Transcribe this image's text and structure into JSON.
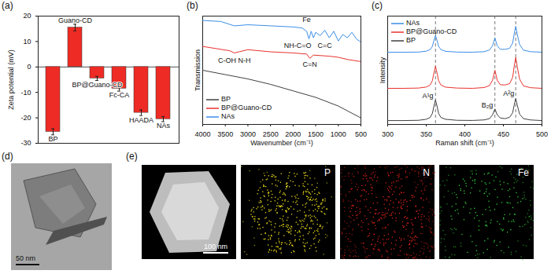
{
  "chart_data": [
    {
      "type": "bar",
      "title": "(a)",
      "categories": [
        "BP",
        "Guano-CD",
        "BP@Guano-CD",
        "Fc-CA",
        "HAADA",
        "NAs"
      ],
      "values": [
        -25.5,
        15.5,
        -4.5,
        -8.5,
        -18,
        -20.5
      ],
      "error": [
        1.2,
        1.3,
        0.8,
        1.0,
        1.1,
        1.0
      ],
      "color": "#ee2b24",
      "y_label": "Zeta potential (mV)",
      "ylim": [
        -30,
        20
      ],
      "yticks": [
        -30,
        -20,
        -10,
        0,
        10,
        20
      ],
      "tick_labels": "y"
    },
    {
      "type": "line",
      "title": "(b)",
      "x_label": "Wavenumber (cm⁻¹)",
      "y_label": "Transmission",
      "xlim": [
        4000,
        500
      ],
      "xticks": [
        4000,
        3500,
        3000,
        2500,
        2000,
        1500,
        1000,
        500
      ],
      "ylim": [
        0,
        10
      ],
      "tick_labels": "x",
      "legend": "bottom-left",
      "series": [
        {
          "name": "BP",
          "color": "#404040",
          "x": [
            4000,
            3500,
            3000,
            2500,
            2000,
            1500,
            1000,
            500
          ],
          "values": [
            5.0,
            4.6,
            4.2,
            3.7,
            3.1,
            2.5,
            1.7,
            0.6
          ]
        },
        {
          "name": "BP@Guano-CD",
          "color": "#e8332e",
          "x": [
            4000,
            3700,
            3400,
            3300,
            3200,
            3000,
            2500,
            2000,
            1700,
            1630,
            1550,
            1200,
            1000,
            800,
            500
          ],
          "values": [
            7.2,
            7.0,
            6.8,
            6.6,
            6.7,
            6.9,
            6.7,
            6.6,
            6.5,
            6.1,
            6.4,
            6.3,
            6.2,
            6.0,
            5.8
          ]
        },
        {
          "name": "NAs",
          "color": "#3c8ee8",
          "x": [
            4000,
            3600,
            3300,
            3000,
            2500,
            2000,
            1800,
            1700,
            1650,
            1600,
            1550,
            1500,
            1400,
            1300,
            1200,
            1100,
            1000,
            900,
            800,
            700,
            600,
            500
          ],
          "values": [
            9.6,
            9.5,
            9.1,
            9.2,
            9.1,
            9.0,
            8.9,
            8.6,
            7.9,
            8.6,
            8.0,
            8.5,
            8.2,
            8.7,
            8.0,
            8.6,
            7.7,
            8.3,
            8.0,
            8.5,
            7.9,
            7.6
          ]
        }
      ],
      "annotations": [
        {
          "text": "Fe",
          "x": 1700,
          "y": 9.7
        },
        {
          "text": "NH-C=O",
          "x": 1900,
          "y": 7.3
        },
        {
          "text": "C=C",
          "x": 1300,
          "y": 7.3
        },
        {
          "text": "C-OH N-H",
          "x": 3300,
          "y": 5.9
        },
        {
          "text": "C=N",
          "x": 1630,
          "y": 5.5
        }
      ]
    },
    {
      "type": "line",
      "title": "(c)",
      "x_label": "Raman shift (cm⁻¹)",
      "y_label": "Intensity",
      "xlim": [
        300,
        500
      ],
      "xticks": [
        300,
        350,
        400,
        450,
        500
      ],
      "ylim": [
        0,
        8.4
      ],
      "tick_labels": "x",
      "legend": "top-left",
      "x": [
        300,
        320,
        340,
        350,
        355,
        358,
        360,
        362,
        364,
        366,
        369,
        375,
        390,
        410,
        425,
        432,
        436,
        439,
        442,
        446,
        452,
        458,
        462,
        464,
        466,
        468,
        471,
        476,
        485,
        500
      ],
      "series": [
        {
          "name": "NAs",
          "color": "#3c8ee8",
          "values": [
            5.6,
            5.6,
            5.61,
            5.68,
            5.8,
            6.06,
            6.51,
            6.9,
            6.51,
            6.06,
            5.8,
            5.67,
            5.61,
            5.6,
            5.64,
            5.77,
            6.1,
            6.7,
            6.1,
            5.83,
            5.82,
            5.9,
            6.3,
            7.0,
            7.6,
            7.0,
            6.2,
            5.76,
            5.64,
            5.6
          ]
        },
        {
          "name": "BP@Guano-CD",
          "color": "#e8332e",
          "values": [
            2.8,
            2.8,
            2.82,
            2.9,
            3.06,
            3.4,
            3.99,
            4.5,
            3.99,
            3.4,
            3.06,
            2.89,
            2.82,
            2.8,
            2.86,
            3.01,
            3.43,
            4.2,
            3.43,
            3.08,
            3.06,
            3.16,
            3.64,
            4.48,
            5.2,
            4.48,
            3.52,
            2.99,
            2.85,
            2.8
          ]
        },
        {
          "name": "BP",
          "color": "#404040",
          "values": [
            0.3,
            0.3,
            0.32,
            0.4,
            0.54,
            0.86,
            1.42,
            1.9,
            1.42,
            0.86,
            0.54,
            0.4,
            0.32,
            0.31,
            0.35,
            0.45,
            0.75,
            1.2,
            0.75,
            0.5,
            0.45,
            0.55,
            0.9,
            1.5,
            2.0,
            1.5,
            0.8,
            0.45,
            0.35,
            0.3
          ]
        }
      ],
      "peak_positions": [
        362,
        439,
        466
      ],
      "annotations": [
        {
          "text": "A¹g",
          "x": 352,
          "y": 2.2
        },
        {
          "text": "B₂g",
          "x": 429,
          "y": 1.5
        },
        {
          "text": "A²g",
          "x": 457,
          "y": 2.4
        }
      ]
    },
    {
      "type": "image",
      "title": "(d)",
      "annotations": [
        "50 nm"
      ]
    },
    {
      "type": "image",
      "title": "(e)",
      "categories": [
        null,
        "P",
        "N",
        "Fe"
      ],
      "annotations": [
        "100 nm"
      ]
    }
  ]
}
